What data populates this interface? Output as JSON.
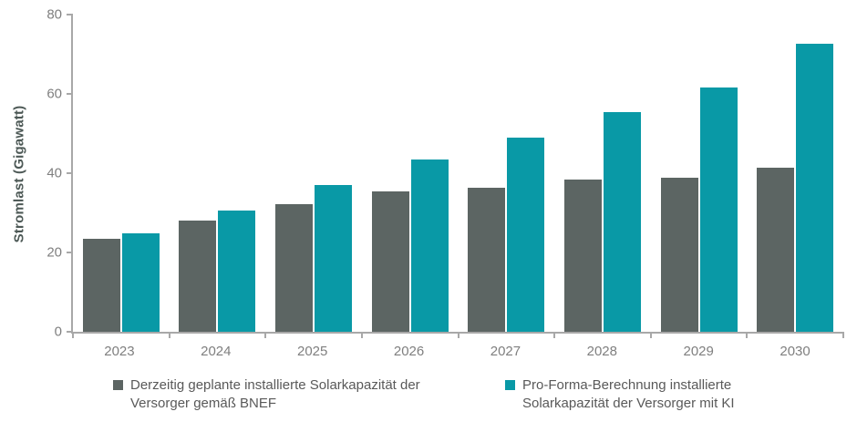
{
  "chart_data": {
    "type": "bar",
    "title": "",
    "xlabel": "",
    "ylabel": "Stromlast (Gigawatt)",
    "ylim": [
      0,
      80
    ],
    "yticks": [
      0,
      20,
      40,
      60,
      80
    ],
    "grid": false,
    "legend_position": "bottom",
    "categories": [
      "2023",
      "2024",
      "2025",
      "2026",
      "2027",
      "2028",
      "2029",
      "2030"
    ],
    "series": [
      {
        "name": "Derzeitig geplante installierte Solarkapazität der Versorger gemäß BNEF",
        "color": "#5C6563",
        "values": [
          23.5,
          28.0,
          32.1,
          35.3,
          36.4,
          38.4,
          38.9,
          41.4
        ]
      },
      {
        "name": "Pro-Forma-Berechnung installierte Solarkapazität der Versorger mit KI",
        "color": "#0999A6",
        "values": [
          24.8,
          30.6,
          37.0,
          43.5,
          48.9,
          55.5,
          61.5,
          72.6
        ]
      }
    ]
  },
  "legend": {
    "items": [
      {
        "label": "Derzeitig geplante installierte Solarkapazität der Versorger gemäß BNEF",
        "color": "#5C6563"
      },
      {
        "label": "Pro-Forma-Berechnung installierte Solarkapazität der Versorger mit KI",
        "color": "#0999A6"
      }
    ]
  },
  "colors": {
    "background": "#FFFFFF",
    "axis_line": "#A8A8A8",
    "tick_label": "#7F7F7F",
    "axis_title": "#4D5956",
    "legend_text": "#595959"
  }
}
